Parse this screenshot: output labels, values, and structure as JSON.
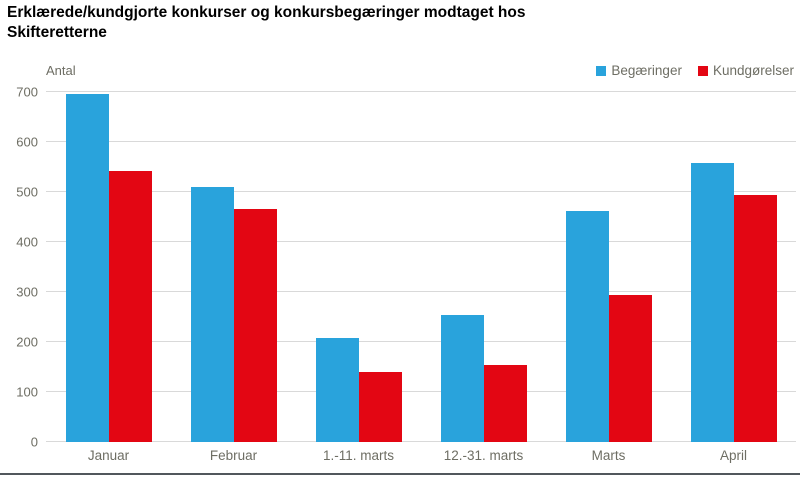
{
  "title": "Erklærede/kundgjorte konkurser og konkursbegæringer modtaget hos Skifteretterne",
  "colors": {
    "begaeringer": "#29A3DC",
    "kundgoerelser": "#E30613",
    "gridline": "#D9D9D9",
    "axis_text": "#6E6E64",
    "title_text": "#000000",
    "bottom_rule": "#51575C"
  },
  "chart_data": {
    "type": "bar",
    "title": "Erklærede/kundgjorte konkurser og konkursbegæringer modtaget hos Skifteretterne",
    "ylabel": "Antal",
    "xlabel": "",
    "categories": [
      "Januar",
      "Februar",
      "1.-11. marts",
      "12.-31. marts",
      "Marts",
      "April"
    ],
    "series": [
      {
        "name": "Begæringer",
        "color": "#29A3DC",
        "values": [
          697,
          511,
          209,
          254,
          463,
          558
        ]
      },
      {
        "name": "Kundgørelser",
        "color": "#E30613",
        "values": [
          543,
          466,
          140,
          155,
          295,
          494
        ]
      }
    ],
    "ylim": [
      0,
      700
    ],
    "ytick_interval": 100,
    "yticks": [
      0,
      100,
      200,
      300,
      400,
      500,
      600,
      700
    ],
    "grid": true,
    "legend_position": "top-right"
  }
}
